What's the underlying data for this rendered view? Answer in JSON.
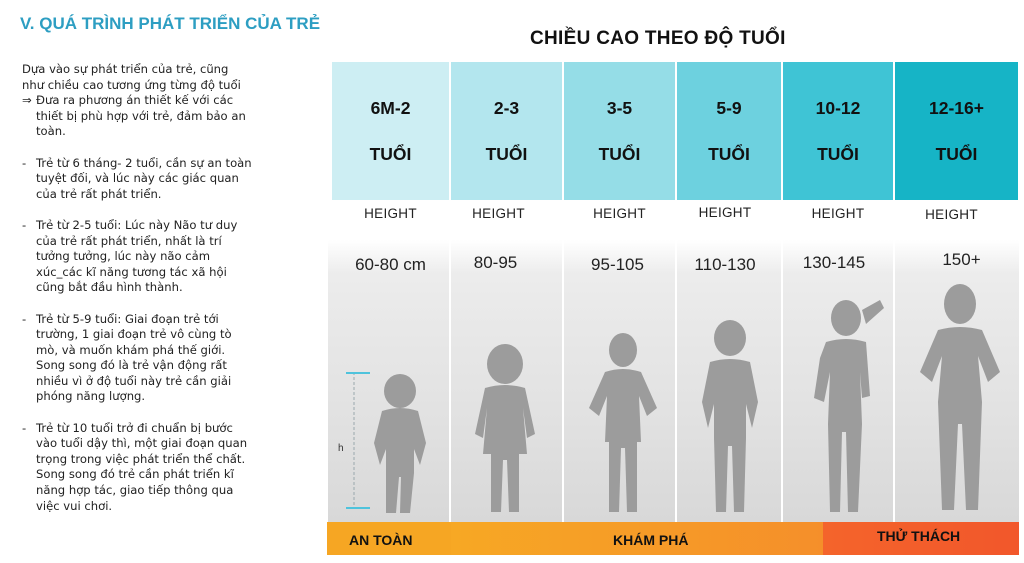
{
  "section_title": "V. QUÁ TRÌNH PHÁT TRIỂN CỦA TRẺ",
  "intro": {
    "text": "Dựa vào sự phát triển của trẻ, cũng như chiều cao tương ứng từng độ tuổi",
    "arrow_symbol": "⇒",
    "conclusion": "Đưa ra phương án thiết kế với các thiết bị phù hợp với trẻ, đảm bảo an toàn."
  },
  "bullets": [
    {
      "dash": "-",
      "text": "Trẻ từ 6 tháng- 2 tuổi, cần sự an toàn tuyệt đối, và lúc này các giác quan của trẻ rất phát triển."
    },
    {
      "dash": "-",
      "text": "Trẻ từ 2-5 tuổi: Lúc này Não tư duy của trẻ rất phát triển, nhất là trí tưởng tưởng, lúc này não cảm xúc_các kĩ năng tương tác xã hội cũng bắt đầu hình thành."
    },
    {
      "dash": "-",
      "text": "Trẻ từ 5-9 tuổi: Giai đoạn trẻ tới trường, 1 giai đoạn trẻ vô cùng tò mò, và muốn khám phá thế giới. Song song đó là trẻ vận động rất nhiều vì ở độ tuổi này trẻ cần giải phóng năng lượng."
    },
    {
      "dash": "-",
      "text": "Trẻ từ 10 tuổi trở đi chuẩn bị bước vào tuổi dậy thì, một giai đoạn quan trọng trong việc phát triển thể chất. Song song đó trẻ cần phát triển kĩ năng hợp tác, giao tiếp thông qua việc vui chơi."
    }
  ],
  "chart_title": "CHIỀU CAO THEO ĐỘ TUỔI",
  "measure_label": "h",
  "age_groups": [
    {
      "age_line1": "6M-2",
      "age_line2": "TUỔI",
      "height_label": "HEIGHT",
      "height_value": "60-80 cm",
      "color": "#cdeef3"
    },
    {
      "age_line1": "2-3",
      "age_line2": "TUỔI",
      "height_label": "HEIGHT",
      "height_value": "80-95",
      "color": "#b3e6ee"
    },
    {
      "age_line1": "3-5",
      "age_line2": "TUỔI",
      "height_label": "HEIGHT",
      "height_value": "95-105",
      "color": "#95dde7"
    },
    {
      "age_line1": "5-9",
      "age_line2": "TUỔI",
      "height_label": "HEIGHT",
      "height_value": "110-130",
      "color": "#6dd1df"
    },
    {
      "age_line1": "10-12",
      "age_line2": "TUỔI",
      "height_label": "HEIGHT",
      "height_value": "130-145",
      "color": "#3fc4d5"
    },
    {
      "age_line1": "12-16+",
      "age_line2": "TUỔI",
      "height_label": "HEIGHT",
      "height_value": "150+",
      "color": "#16b4c6"
    }
  ],
  "stages": [
    {
      "label": "AN TOÀN",
      "color": "#f6a623"
    },
    {
      "label": "KHÁM PHÁ",
      "color": "#f59a25"
    },
    {
      "label": "THỬ THÁCH",
      "color": "#f2572b"
    }
  ],
  "colors": {
    "title_blue": "#2d9ec2",
    "silhouette": "#9c9c9c",
    "measure_tick": "#4fc3dc"
  }
}
